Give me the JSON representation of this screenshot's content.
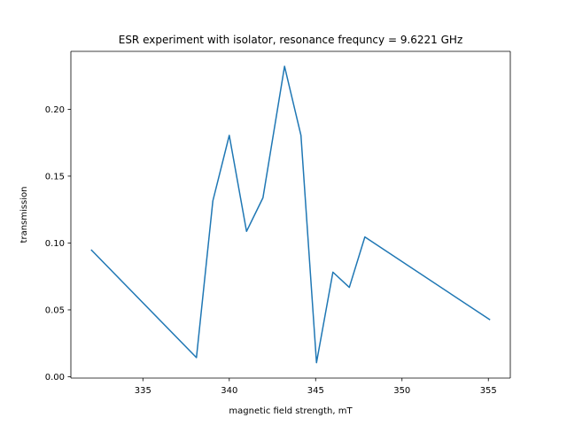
{
  "chart_data": {
    "type": "line",
    "title": "ESR experiment with isolator, resonance frequncy = 9.6221 GHz",
    "xlabel": "magnetic field strength, mT",
    "ylabel": "transmission",
    "xlim": [
      330.83,
      356.27
    ],
    "ylim": [
      -0.001,
      0.2433
    ],
    "xticks": [
      335,
      340,
      345,
      350,
      355
    ],
    "xtick_labels": [
      "335",
      "340",
      "345",
      "350",
      "355"
    ],
    "yticks": [
      0.0,
      0.05,
      0.1,
      0.15,
      0.2
    ],
    "ytick_labels": [
      "0.00",
      "0.05",
      "0.10",
      "0.15",
      "0.20"
    ],
    "grid": false,
    "series": [
      {
        "color": "#1f77b4",
        "x": [
          332.0,
          338.1,
          339.05,
          340.0,
          341.0,
          341.95,
          343.2,
          344.15,
          345.05,
          346.0,
          346.95,
          347.85,
          355.1
        ],
        "y": [
          0.095,
          0.0143,
          0.1315,
          0.1805,
          0.1087,
          0.1338,
          0.2321,
          0.1805,
          0.0105,
          0.0782,
          0.0668,
          0.1045,
          0.0425
        ]
      }
    ]
  }
}
